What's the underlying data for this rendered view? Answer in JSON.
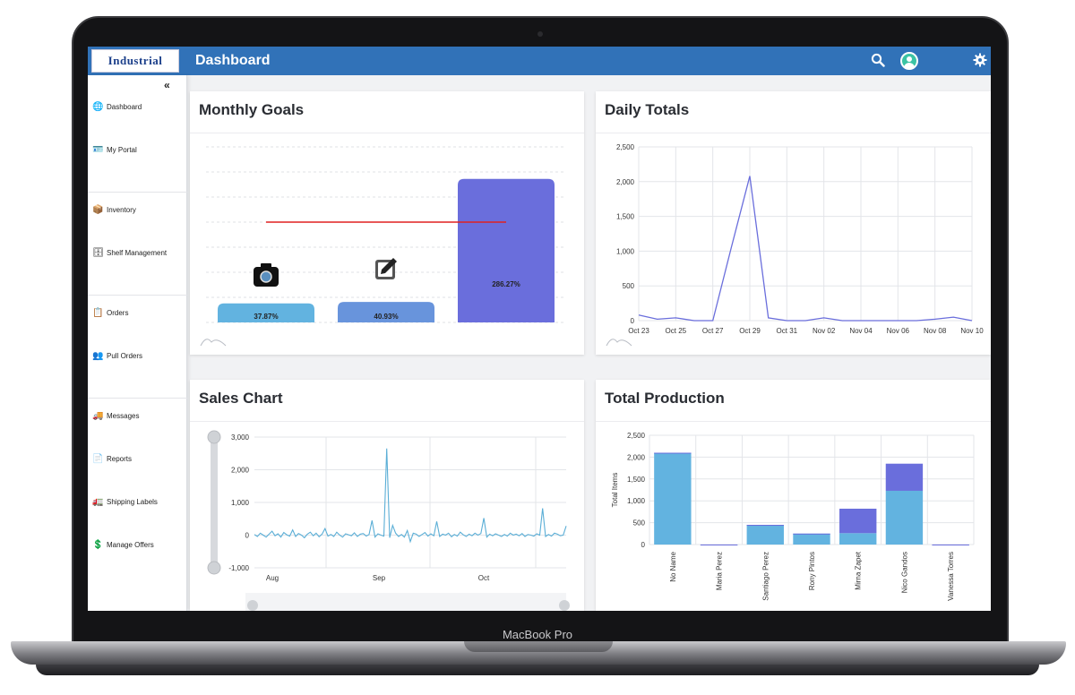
{
  "device": {
    "label": "MacBook Pro"
  },
  "header": {
    "logo_text": "Industrial",
    "title": "Dashboard",
    "search_icon": "search-icon",
    "avatar_icon": "user-avatar-icon",
    "settings_icon": "gear-icon"
  },
  "sidebar": {
    "collapse_glyph": "«",
    "items": [
      {
        "label": "Dashboard",
        "icon": "globe-icon",
        "glyph": "🌐"
      },
      {
        "label": "My Portal",
        "icon": "id-card-icon",
        "glyph": "🪪"
      },
      {
        "label": "Inventory",
        "icon": "boxes-icon",
        "glyph": "📦"
      },
      {
        "label": "Shelf Management",
        "icon": "shelf-icon",
        "glyph": "🗄"
      },
      {
        "label": "Orders",
        "icon": "orders-icon",
        "glyph": "📋"
      },
      {
        "label": "Pull Orders",
        "icon": "people-carry-icon",
        "glyph": "👥"
      },
      {
        "label": "Messages",
        "icon": "truck-messages-icon",
        "glyph": "🚚"
      },
      {
        "label": "Reports",
        "icon": "report-icon",
        "glyph": "📄"
      },
      {
        "label": "Shipping Labels",
        "icon": "shipping-truck-icon",
        "glyph": "🚛"
      },
      {
        "label": "Manage Offers",
        "icon": "hand-coin-icon",
        "glyph": "💲"
      }
    ]
  },
  "cards": {
    "monthly_goals": {
      "title": "Monthly Goals"
    },
    "daily_totals": {
      "title": "Daily Totals"
    },
    "sales_chart": {
      "title": "Sales Chart"
    },
    "total_production": {
      "title": "Total Production"
    }
  },
  "chart_data": [
    {
      "id": "monthly_goals",
      "type": "bar",
      "categories": [
        "",
        "",
        ""
      ],
      "values": [
        37.87,
        40.93,
        286.27
      ],
      "data_labels": [
        "37.87%",
        "40.93%",
        "286.27%"
      ],
      "colors": [
        "#62b3e0",
        "#6894dc",
        "#6a6edc"
      ],
      "goal_line": 200,
      "goal_line_color": "#e02020",
      "ylim": [
        0,
        350
      ],
      "grid": true
    },
    {
      "id": "daily_totals",
      "type": "line",
      "x": [
        "Oct 23",
        "Oct 24",
        "Oct 25",
        "Oct 26",
        "Oct 27",
        "Oct 28",
        "Oct 29",
        "Oct 30",
        "Oct 31",
        "Nov 01",
        "Nov 02",
        "Nov 03",
        "Nov 04",
        "Nov 05",
        "Nov 06",
        "Nov 07",
        "Nov 08",
        "Nov 09",
        "Nov 10"
      ],
      "values": [
        80,
        20,
        40,
        0,
        0,
        1050,
        2080,
        40,
        0,
        0,
        40,
        0,
        0,
        0,
        0,
        0,
        20,
        50,
        0
      ],
      "x_tick_labels": [
        "Oct 23",
        "Oct 25",
        "Oct 27",
        "Oct 29",
        "Oct 31",
        "Nov 02",
        "Nov 04",
        "Nov 06",
        "Nov 08",
        "Nov 10"
      ],
      "y_ticks": [
        0,
        500,
        1000,
        1500,
        2000,
        2500
      ],
      "y_tick_labels": [
        "0",
        "500",
        "1,000",
        "1,500",
        "2,000",
        "2,500"
      ],
      "ylim": [
        0,
        2500
      ],
      "color": "#6a6edc",
      "grid": true
    },
    {
      "id": "sales_chart",
      "type": "line",
      "x_tick_labels": [
        "Aug",
        "Sep",
        "Oct"
      ],
      "y_ticks": [
        -1000,
        0,
        1000,
        2000,
        3000
      ],
      "y_tick_labels": [
        "-1,000",
        "0",
        "1,000",
        "2,000",
        "3,000"
      ],
      "ylim": [
        -1000,
        3000
      ],
      "color": "#5aaed6",
      "values": [
        20,
        -40,
        60,
        0,
        -60,
        30,
        120,
        -20,
        40,
        -60,
        80,
        10,
        -30,
        160,
        -40,
        50,
        0,
        -80,
        30,
        90,
        -20,
        60,
        -50,
        30,
        200,
        -30,
        20,
        -40,
        90,
        0,
        -60,
        40,
        10,
        -20,
        70,
        -40,
        30,
        50,
        -30,
        20,
        450,
        -60,
        40,
        0,
        -30,
        2650,
        -80,
        300,
        60,
        -40,
        20,
        -60,
        140,
        -200,
        60,
        30,
        -40,
        20,
        80,
        -30,
        40,
        -20,
        420,
        -40,
        30,
        0,
        60,
        -50,
        20,
        -30,
        90,
        10,
        -40,
        30,
        -20,
        60,
        0,
        50,
        520,
        -60,
        30,
        -20,
        40,
        0,
        -40,
        20,
        -30,
        60,
        0,
        30,
        -20,
        50,
        -40,
        20,
        0,
        -30,
        40,
        0,
        820,
        -40,
        20,
        -30,
        60,
        30,
        -20,
        0,
        280
      ],
      "grid": true
    },
    {
      "id": "total_production",
      "type": "bar",
      "stacked": true,
      "ylabel": "Total Items",
      "categories": [
        "No Name",
        "Maria Perez",
        "Santiago Perez",
        "Rony Pintos",
        "Mirna Zapet",
        "Nico Gandos",
        "Vanessa Torres"
      ],
      "series": [
        {
          "values": [
            2100,
            0,
            450,
            250,
            260,
            1230,
            0
          ],
          "color": "#62b3e0"
        },
        {
          "values": [
            0,
            0,
            0,
            0,
            560,
            620,
            0
          ],
          "color": "#6a6edc"
        }
      ],
      "y_ticks": [
        0,
        500,
        1000,
        1500,
        2000,
        2500
      ],
      "y_tick_labels": [
        "0",
        "500",
        "1,000",
        "1,500",
        "2,000",
        "2,500"
      ],
      "ylim": [
        0,
        2500
      ],
      "grid": true
    }
  ]
}
